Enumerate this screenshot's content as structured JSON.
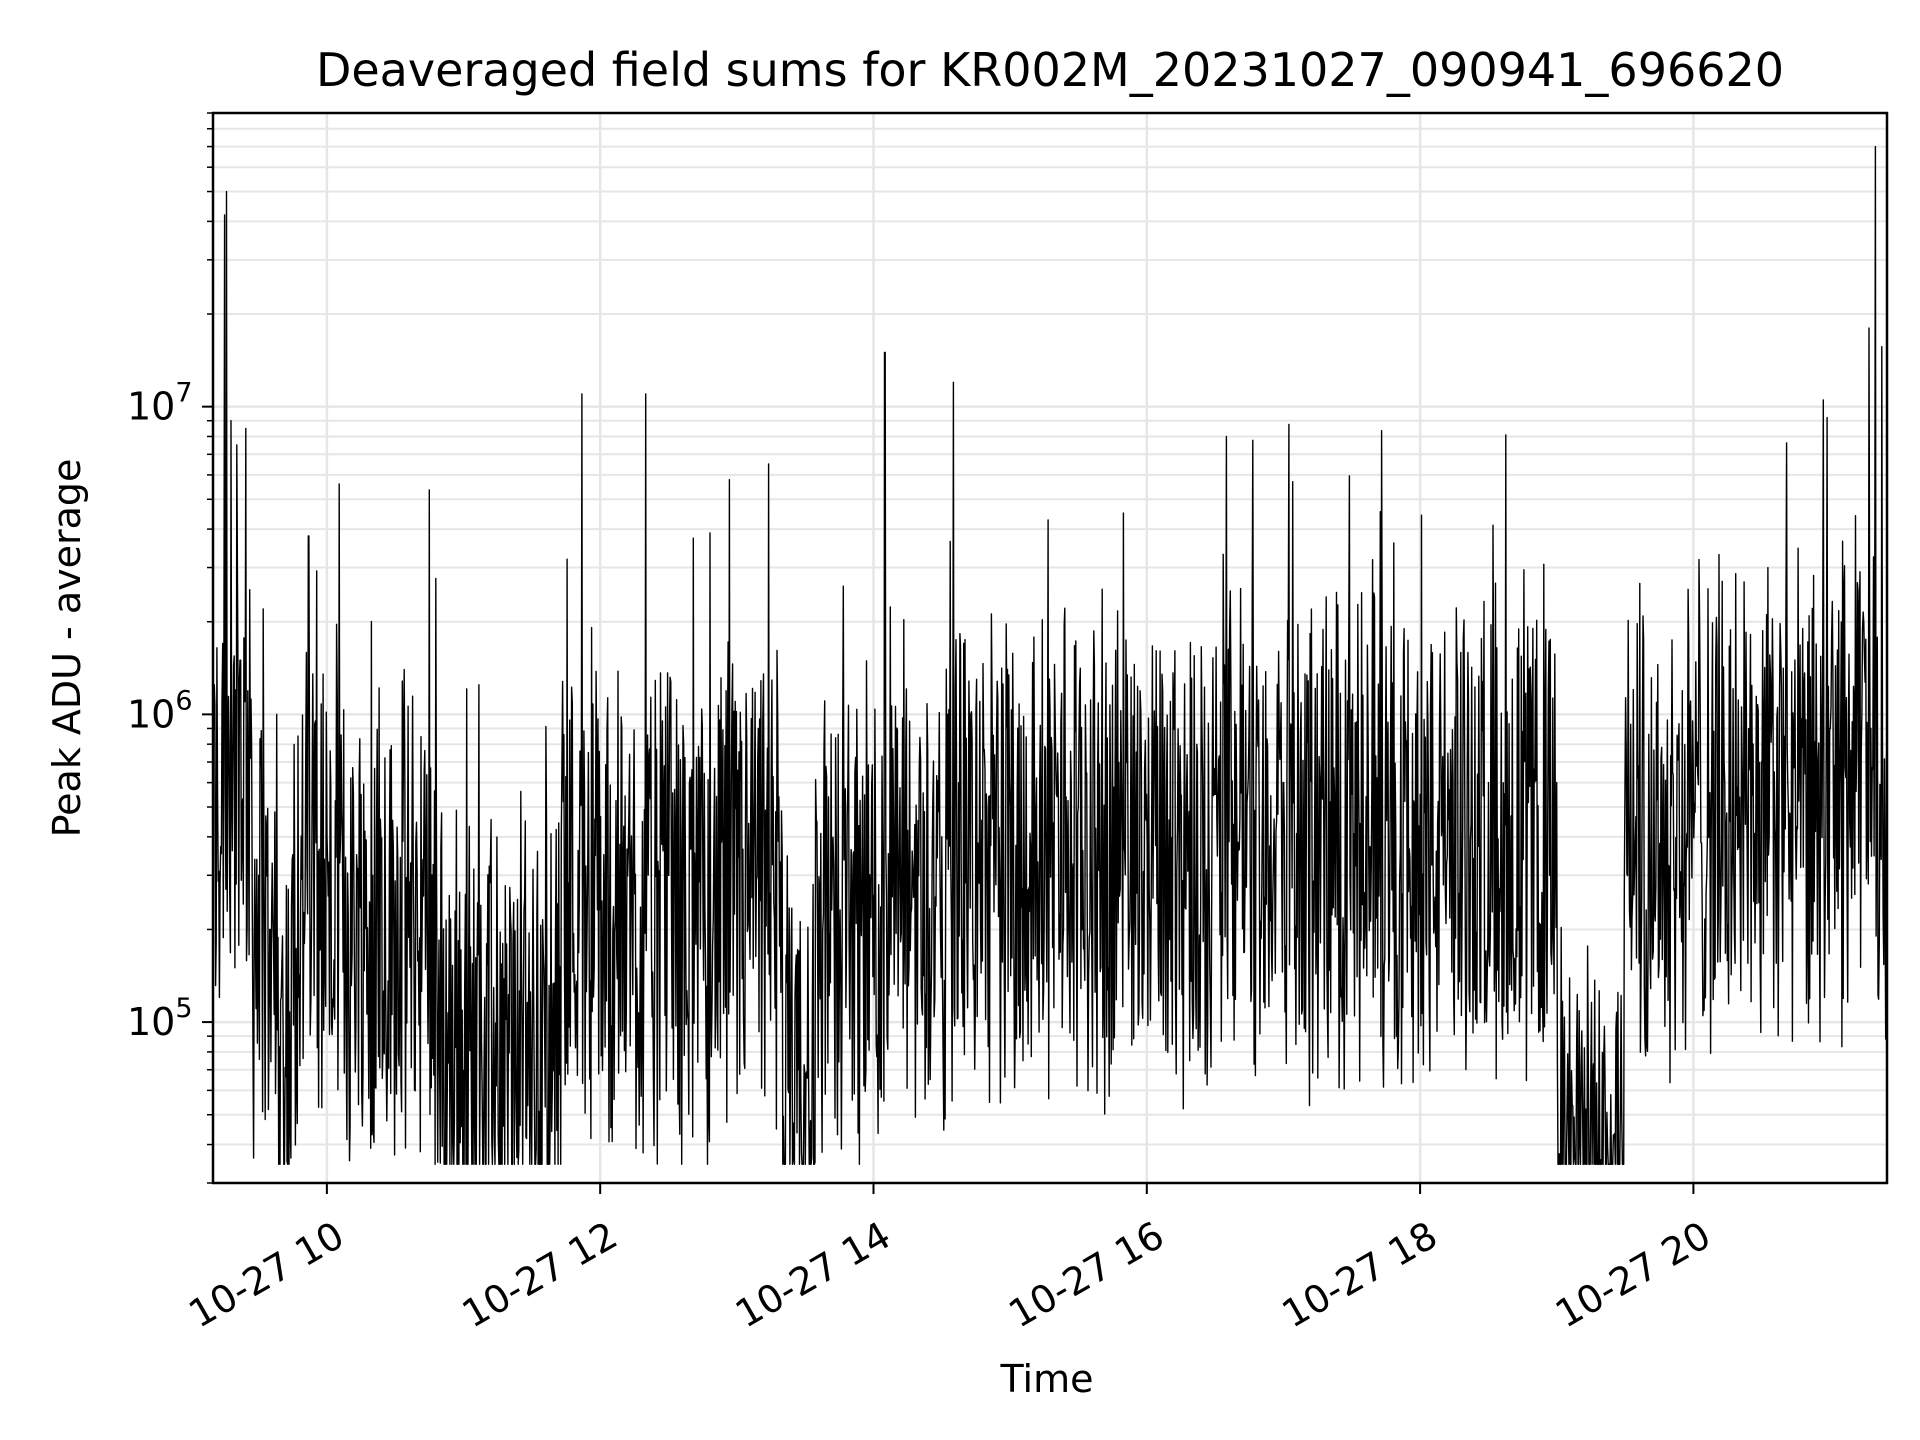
{
  "chart_data": {
    "type": "line",
    "title": "Deaveraged field sums for KR002M_20231027_090941_696620",
    "xlabel": "Time",
    "ylabel": "Peak ADU - average",
    "yscale": "log",
    "xlim": [
      "2023-10-27 09:10",
      "2023-10-27 21:25"
    ],
    "ylim": [
      30000,
      90000000
    ],
    "grid": true,
    "line_color": "#000000",
    "x_ticks": [
      {
        "value": "2023-10-27 10:00",
        "label": "10-27 10"
      },
      {
        "value": "2023-10-27 12:00",
        "label": "10-27 12"
      },
      {
        "value": "2023-10-27 14:00",
        "label": "10-27 14"
      },
      {
        "value": "2023-10-27 16:00",
        "label": "10-27 16"
      },
      {
        "value": "2023-10-27 18:00",
        "label": "10-27 18"
      },
      {
        "value": "2023-10-27 20:00",
        "label": "10-27 20"
      }
    ],
    "y_ticks": [
      {
        "value": 100000,
        "base": "10",
        "exp": "5"
      },
      {
        "value": 1000000,
        "base": "10",
        "exp": "6"
      },
      {
        "value": 10000000,
        "base": "10",
        "exp": "7"
      }
    ],
    "series": [
      {
        "x": [
          "2023-10-27 09:10",
          "2023-10-27 09:12",
          "2023-10-27 09:14",
          "2023-10-27 09:15",
          "2023-10-27 09:16",
          "2023-10-27 09:17",
          "2023-10-27 09:18",
          "2023-10-27 09:20",
          "2023-10-27 09:22",
          "2023-10-27 09:24",
          "2023-10-27 09:27",
          "2023-10-27 09:30",
          "2023-10-27 09:32",
          "2023-10-27 09:35",
          "2023-10-27 09:38",
          "2023-10-27 09:40",
          "2023-10-27 09:45",
          "2023-10-27 09:52",
          "2023-10-27 10:00",
          "2023-10-27 10:20",
          "2023-10-27 10:48",
          "2023-10-27 11:15",
          "2023-10-27 11:43",
          "2023-10-27 11:52",
          "2023-10-27 12:10",
          "2023-10-27 12:20",
          "2023-10-27 12:30",
          "2023-10-27 12:50",
          "2023-10-27 13:20",
          "2023-10-27 13:28",
          "2023-10-27 13:35",
          "2023-10-27 13:55",
          "2023-10-27 14:05",
          "2023-10-27 14:30",
          "2023-10-27 14:35",
          "2023-10-27 15:00",
          "2023-10-27 15:30",
          "2023-10-27 16:00",
          "2023-10-27 16:30",
          "2023-10-27 16:35",
          "2023-10-27 17:00",
          "2023-10-27 17:30",
          "2023-10-27 18:00",
          "2023-10-27 18:30",
          "2023-10-27 19:00",
          "2023-10-27 19:25",
          "2023-10-27 19:30",
          "2023-10-27 20:00",
          "2023-10-27 20:30",
          "2023-10-27 21:00",
          "2023-10-27 21:15",
          "2023-10-27 21:17",
          "2023-10-27 21:18",
          "2023-10-27 21:20",
          "2023-10-27 21:25"
        ],
        "y": [
          1000000,
          600000,
          1100000,
          42000000,
          50000000,
          800000,
          9000000,
          1200000,
          1500000,
          1100000,
          800000,
          300000,
          2200000,
          200000,
          1000000,
          120000,
          350000,
          3800000,
          400000,
          300000,
          450000,
          110000,
          400000,
          11000000,
          300000,
          11000000,
          300000,
          400000,
          350000,
          60000,
          450000,
          300000,
          15000000,
          400000,
          12000000,
          500000,
          500000,
          550000,
          550000,
          8000000,
          600000,
          550000,
          550000,
          600000,
          600000,
          43000,
          600000,
          700000,
          700000,
          900000,
          1500000,
          18000000,
          900000,
          70000000,
          800000
        ]
      }
    ]
  }
}
